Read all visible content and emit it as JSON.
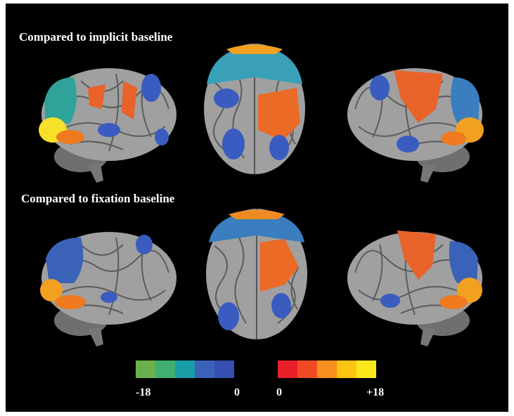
{
  "panels": [
    {
      "title": "Compared to implicit baseline"
    },
    {
      "title": "Compared to fixation baseline"
    }
  ],
  "colorbar": {
    "negative": {
      "min_label": "-18",
      "max_label": "0"
    },
    "positive": {
      "min_label": "0",
      "max_label": "+18"
    }
  }
}
